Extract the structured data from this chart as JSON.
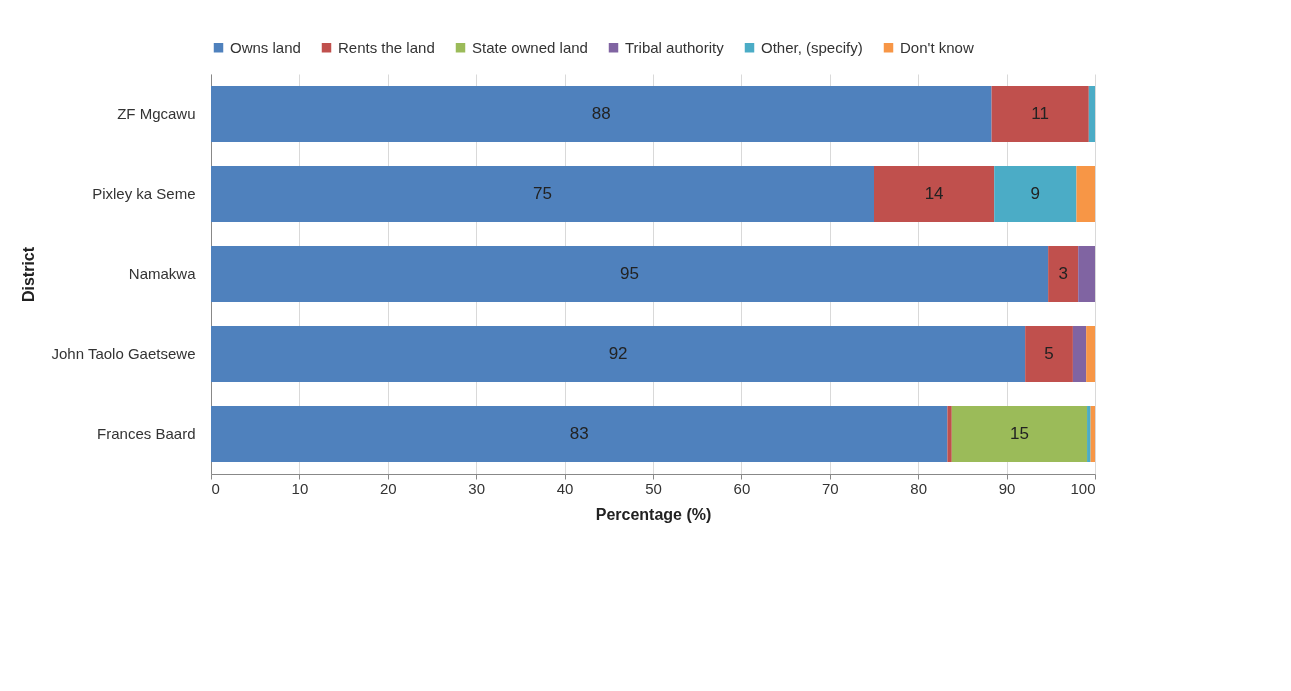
{
  "chart_data": {
    "type": "bar",
    "orientation": "horizontal",
    "stacked": true,
    "xlabel": "Percentage (%)",
    "ylabel": "District",
    "categories": [
      "ZF Mgcawu",
      "Pixley ka Seme",
      "Namakwa",
      "John Taolo Gaetsewe",
      "Frances Baard"
    ],
    "series": [
      {
        "name": "Owns land",
        "color": "#4f81bd",
        "values": [
          88.3,
          75,
          94.7,
          92.1,
          83.3
        ],
        "value_labels": [
          "88",
          "75",
          "95",
          "92",
          "83"
        ]
      },
      {
        "name": "Rents the land",
        "color": "#c0504d",
        "values": [
          11,
          13.6,
          3.4,
          5.4,
          0.5
        ],
        "value_labels": [
          "11",
          "14",
          "3",
          "5",
          null
        ]
      },
      {
        "name": "State owned land",
        "color": "#9bbb59",
        "values": [
          null,
          null,
          null,
          null,
          15.3
        ],
        "value_labels": [
          null,
          null,
          null,
          null,
          "15"
        ]
      },
      {
        "name": "Tribal authority",
        "color": "#8064a2",
        "values": [
          null,
          null,
          1.9,
          1.5,
          null
        ]
      },
      {
        "name": "Other, (specify)",
        "color": "#4bacc6",
        "values": [
          0.7,
          9.3,
          null,
          null,
          0.4
        ],
        "value_labels": [
          null,
          "9",
          null,
          null,
          null
        ]
      },
      {
        "name": "Don't know",
        "color": "#f79646",
        "values": [
          null,
          2.1,
          null,
          1,
          0.5
        ]
      }
    ],
    "xlim": [
      0,
      100
    ],
    "xticks": [
      0,
      10,
      20,
      30,
      40,
      50,
      60,
      70,
      80,
      90,
      100
    ],
    "grid": "x",
    "legend": "top"
  }
}
